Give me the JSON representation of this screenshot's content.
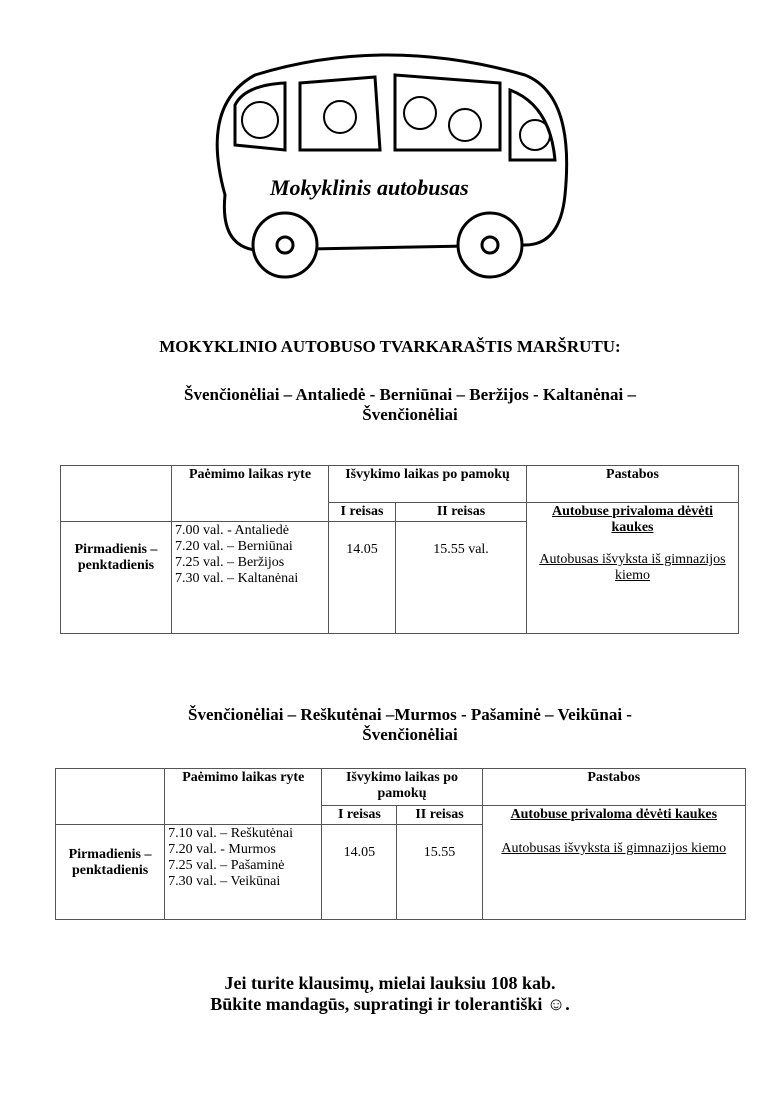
{
  "bus_caption": "Mokyklinis autobusas",
  "title": "MOKYKLINIO AUTOBUSO TVARKARAŠTIS MARŠRUTU:",
  "routes": [
    {
      "name_line1": "Švenčionėliai – Antaliedė - Berniūnai – Beržijos - Kaltanėnai –",
      "name_line2": "Švenčionėliai",
      "headers": {
        "pickup": "Paėmimo laikas ryte",
        "departure": "Išvykimo laikas po pamokų",
        "trip1": "I reisas",
        "trip2": "II reisas",
        "notes": "Pastabos"
      },
      "days": "Pirmadienis – penktadienis",
      "stops": [
        "7.00 val. - Antaliedė",
        "7.20 val. – Berniūnai",
        "7.25 val. – Beržijos",
        "7.30 val. – Kaltanėnai"
      ],
      "trip1_time": "14.05",
      "trip2_time": "15.55 val.",
      "note_bold": "Autobuse privaloma dėvėti kaukes",
      "note": "Autobusas išvyksta iš gimnazijos kiemo"
    },
    {
      "name_line1": "Švenčionėliai  – Reškutėnai –Murmos -  Pašaminė – Veikūnai  -",
      "name_line2": "Švenčionėliai",
      "headers": {
        "pickup": "Paėmimo laikas ryte",
        "departure": "Išvykimo laikas po pamokų",
        "trip1": "I reisas",
        "trip2": "II reisas",
        "notes": "Pastabos"
      },
      "days": "Pirmadienis – penktadienis",
      "stops": [
        "7.10 val. – Reškutėnai",
        "7.20 val. - Murmos",
        "7.25 val. – Pašaminė",
        "7.30 val. – Veikūnai"
      ],
      "trip1_time": "14.05",
      "trip2_time": "15.55",
      "note_bold": "Autobuse privaloma dėvėti kaukes",
      "note": "Autobusas išvyksta iš gimnazijos kiemo"
    }
  ],
  "footer_line1": "Jei turite klausimų, mielai lauksiu 108 kab.",
  "footer_line2": "Būkite mandagūs, supratingi ir tolerantiški ☺."
}
